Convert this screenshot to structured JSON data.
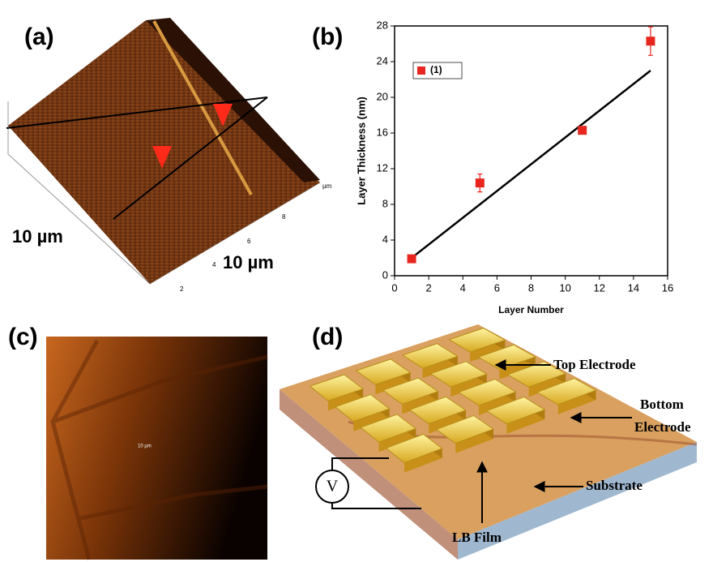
{
  "panel_a": {
    "label": "(a)",
    "scale_x": "10 µm",
    "scale_y": "10 µm",
    "axis_ticks": [
      "2",
      "4",
      "6",
      "8"
    ],
    "axis_unit": "µm"
  },
  "panel_b": {
    "label": "(b)"
  },
  "panel_c": {
    "label": "(c)",
    "scale": "10 µm"
  },
  "panel_d": {
    "label": "(d)",
    "top_electrode": "Top Electrode",
    "bottom_electrode": [
      "Bottom",
      "Electrode"
    ],
    "substrate": "Substrate",
    "lb_film": "LB Film",
    "voltmeter": "V"
  },
  "chart_data": {
    "type": "scatter",
    "x_label": "Layer Number",
    "y_label": "Layer Thickness (nm)",
    "x": [
      1,
      5,
      11,
      15
    ],
    "series": [
      {
        "name": "(1)",
        "color": "#e8261f",
        "values": [
          1.9,
          10.4,
          16.3,
          26.3
        ],
        "errors": [
          0.3,
          1.0,
          0.4,
          1.6
        ]
      }
    ],
    "fit_line": {
      "x": [
        1,
        15
      ],
      "y": [
        2,
        23
      ],
      "color": "#000000"
    },
    "xlim": [
      0,
      16
    ],
    "xticks": [
      0,
      2,
      4,
      6,
      8,
      10,
      12,
      14,
      16
    ],
    "ylim": [
      0,
      28
    ],
    "yticks": [
      0,
      4,
      8,
      12,
      16,
      20,
      24,
      28
    ],
    "legend": "upper left"
  }
}
